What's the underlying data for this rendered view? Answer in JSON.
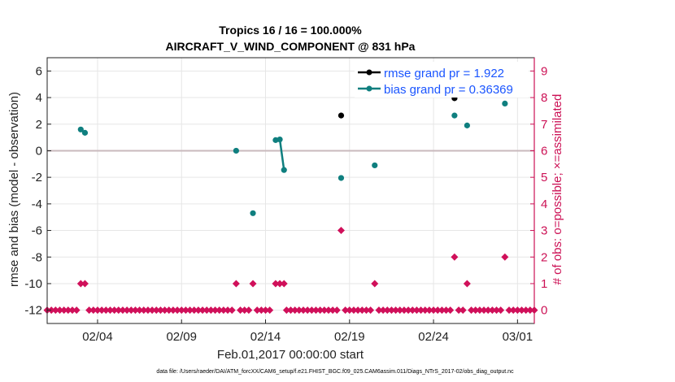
{
  "chart_data": {
    "type": "scatter",
    "title_line1": "Tropics 16 / 16 = 100.000%",
    "title_line2": "AIRCRAFT_V_WIND_COMPONENT @ 831 hPa",
    "ylabel": "rmse and bias (model - observation)",
    "y2label": "# of obs: o=possible; ×=assimilated",
    "xlabel": "Feb.01,2017 00:00:00 start",
    "footnote": "data file: /Users/raeder/DAI/ATM_forcXX/CAM6_setup/f.e21.FHIST_BGC.f09_025.CAM6assim.011/Diags_NTrS_2017-02/obs_diag_output.nc",
    "xlim": [
      0,
      29
    ],
    "ylim": [
      -13,
      7
    ],
    "y2lim": [
      -0.5,
      9.5
    ],
    "x_ticks": [
      {
        "pos": 3,
        "label": "02/04"
      },
      {
        "pos": 8,
        "label": "02/09"
      },
      {
        "pos": 13,
        "label": "02/14"
      },
      {
        "pos": 18,
        "label": "02/19"
      },
      {
        "pos": 23,
        "label": "02/24"
      },
      {
        "pos": 28,
        "label": "03/01"
      }
    ],
    "y_ticks": [
      {
        "value": 6,
        "label": "6"
      },
      {
        "value": 4,
        "label": "4"
      },
      {
        "value": 2,
        "label": "2"
      },
      {
        "value": 0,
        "label": "0"
      },
      {
        "value": -2,
        "label": "-2"
      },
      {
        "value": -4,
        "label": "-4"
      },
      {
        "value": -6,
        "label": "-6"
      },
      {
        "value": -8,
        "label": "-8"
      },
      {
        "value": -10,
        "label": "-10"
      },
      {
        "value": -12,
        "label": "-12"
      }
    ],
    "y2_ticks": [
      {
        "value": 0,
        "label": "0"
      },
      {
        "value": 1,
        "label": "1"
      },
      {
        "value": 2,
        "label": "2"
      },
      {
        "value": 3,
        "label": "3"
      },
      {
        "value": 4,
        "label": "4"
      },
      {
        "value": 5,
        "label": "5"
      },
      {
        "value": 6,
        "label": "6"
      },
      {
        "value": 7,
        "label": "7"
      },
      {
        "value": 8,
        "label": "8"
      },
      {
        "value": 9,
        "label": "9"
      }
    ],
    "grid": true,
    "legend_position": "top-right",
    "series": [
      {
        "name": "rmse grand pr = 1.922",
        "color": "#000000",
        "points": [
          {
            "x": 17.5,
            "y": 2.65
          },
          {
            "x": 24.25,
            "y": 3.95
          },
          {
            "x": 27.25,
            "y": 5.1
          }
        ],
        "connected": []
      },
      {
        "name": "bias grand pr = 0.36369",
        "color": "#0f7f7f",
        "points": [
          {
            "x": 2.0,
            "y": 1.6
          },
          {
            "x": 2.25,
            "y": 1.35
          },
          {
            "x": 11.25,
            "y": 0.0
          },
          {
            "x": 12.25,
            "y": -4.7
          },
          {
            "x": 13.6,
            "y": 0.8
          },
          {
            "x": 13.85,
            "y": 0.85
          },
          {
            "x": 14.1,
            "y": -1.45
          },
          {
            "x": 17.5,
            "y": -2.05
          },
          {
            "x": 19.5,
            "y": -1.1
          },
          {
            "x": 24.25,
            "y": 2.65
          },
          {
            "x": 25.0,
            "y": 1.9
          },
          {
            "x": 27.25,
            "y": 3.55
          }
        ],
        "connected": [
          [
            4,
            5,
            6
          ]
        ]
      }
    ],
    "obs_counts": {
      "color": "#d0105a",
      "x_start": 0.0,
      "x_step": 0.25,
      "values": [
        0,
        0,
        0,
        0,
        0,
        0,
        0,
        0,
        0,
        0,
        0,
        0,
        0,
        0,
        0,
        0,
        0,
        0,
        0,
        0,
        0,
        0,
        0,
        0,
        0,
        0,
        0,
        0,
        0,
        0,
        0,
        0,
        0,
        0,
        0,
        0,
        0,
        0,
        0,
        0,
        0,
        0,
        0,
        0,
        0,
        0,
        0,
        0,
        0,
        0,
        0,
        0,
        0,
        0,
        0,
        0,
        0,
        0,
        0,
        0,
        0,
        0,
        0,
        0,
        0,
        0,
        0,
        0,
        0,
        0,
        0,
        0,
        0,
        0,
        0,
        0,
        0,
        0,
        0,
        0,
        0,
        0,
        0,
        0,
        0,
        0,
        0,
        0,
        0,
        0,
        0,
        0,
        0,
        0,
        0,
        0,
        0,
        0,
        0,
        0,
        0,
        0,
        0,
        0,
        0,
        0,
        0,
        0,
        0,
        0,
        0,
        0,
        0,
        0,
        0,
        0,
        0
      ],
      "nonzero": [
        {
          "x": 2.0,
          "y": 1
        },
        {
          "x": 2.25,
          "y": 1
        },
        {
          "x": 11.25,
          "y": 1
        },
        {
          "x": 12.25,
          "y": 1
        },
        {
          "x": 13.6,
          "y": 1
        },
        {
          "x": 13.85,
          "y": 1
        },
        {
          "x": 14.1,
          "y": 1
        },
        {
          "x": 17.5,
          "y": 3
        },
        {
          "x": 19.5,
          "y": 1
        },
        {
          "x": 24.25,
          "y": 2
        },
        {
          "x": 25.0,
          "y": 1
        },
        {
          "x": 27.25,
          "y": 2
        }
      ]
    }
  }
}
